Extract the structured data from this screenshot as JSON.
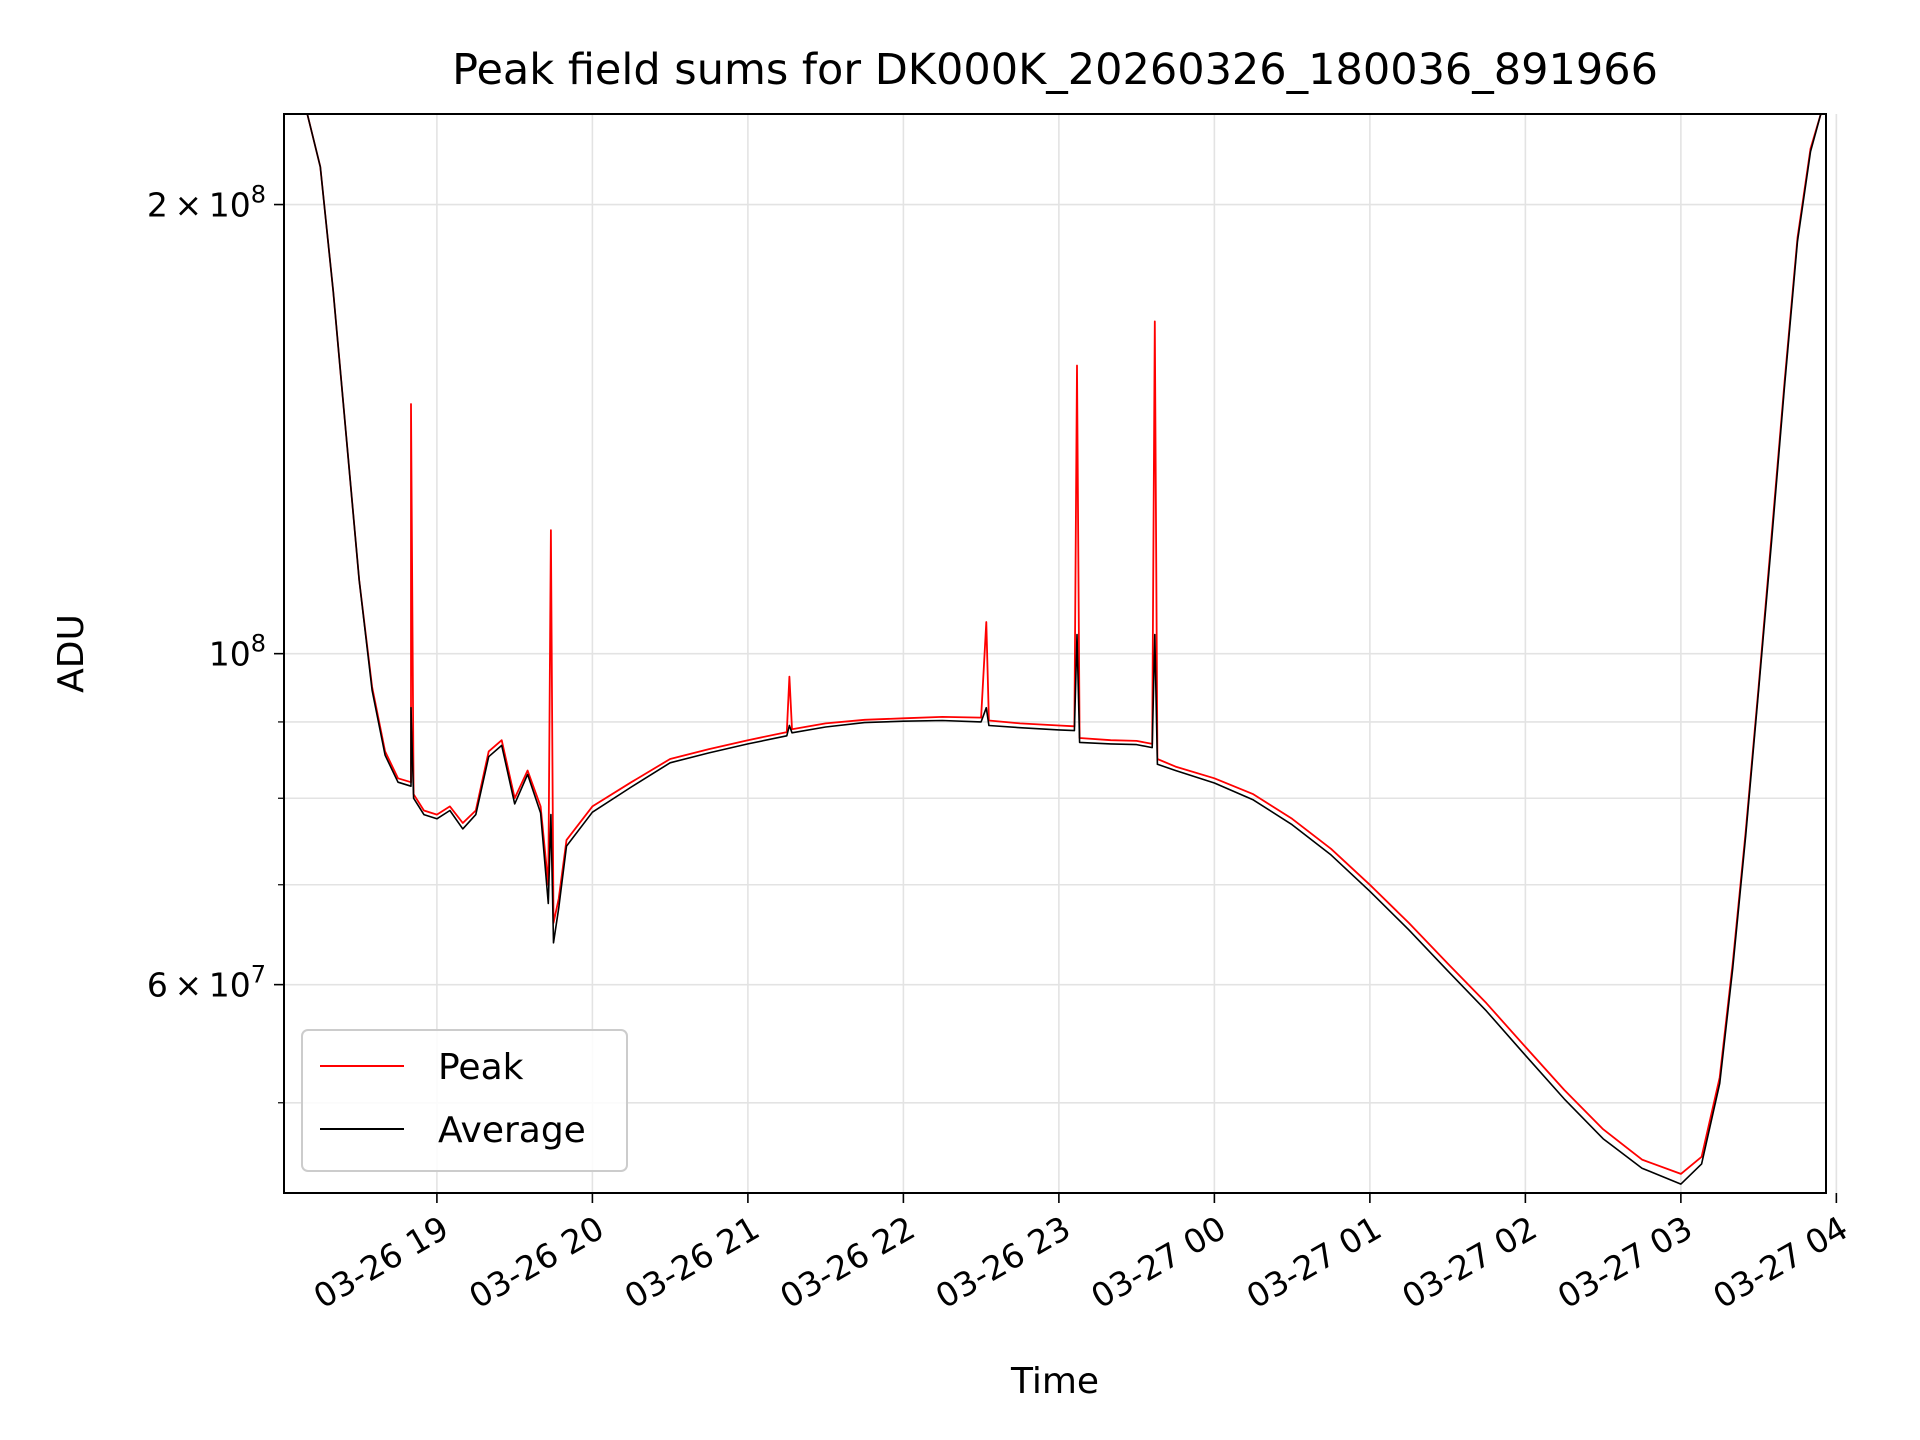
{
  "chart_data": {
    "type": "line",
    "title": "Peak field sums for DK000K_20260326_180036_891966",
    "xlabel": "Time",
    "ylabel": "ADU",
    "yscale": "log",
    "ylim": [
      43500000,
      230000000
    ],
    "xlim": [
      "03-26 18:01",
      "03-27 03:56"
    ],
    "grid": true,
    "legend_position": "lower-left",
    "x_tick_labels": [
      "03-26 19",
      "03-26 20",
      "03-26 21",
      "03-26 22",
      "03-26 23",
      "03-27 00",
      "03-27 01",
      "03-27 02",
      "03-27 03",
      "03-27 04"
    ],
    "y_tick_labels": [
      {
        "value": 200000000,
        "mantissa": "2",
        "times": "×",
        "base": "10",
        "exp": "8"
      },
      {
        "value": 100000000,
        "mantissa": "",
        "times": "",
        "base": "10",
        "exp": "8"
      },
      {
        "value": 60000000,
        "mantissa": "6",
        "times": "×",
        "base": "10",
        "exp": "7"
      }
    ],
    "y_minor_ticks": [
      50000000,
      70000000,
      80000000,
      90000000
    ],
    "series": [
      {
        "name": "Peak",
        "color": "#ff0000",
        "points": [
          [
            "03-26 18:10",
            230000000
          ],
          [
            "03-26 18:15",
            212000000
          ],
          [
            "03-26 18:20",
            175000000
          ],
          [
            "03-26 18:25",
            140000000
          ],
          [
            "03-26 18:30",
            112000000
          ],
          [
            "03-26 18:35",
            95000000
          ],
          [
            "03-26 18:40",
            86000000
          ],
          [
            "03-26 18:45",
            82500000
          ],
          [
            "03-26 18:50",
            82000000
          ],
          [
            "03-26 18:50",
            147000000
          ],
          [
            "03-26 18:51",
            80500000
          ],
          [
            "03-26 18:55",
            78500000
          ],
          [
            "03-26 19:00",
            78000000
          ],
          [
            "03-26 19:05",
            79000000
          ],
          [
            "03-26 19:10",
            77000000
          ],
          [
            "03-26 19:15",
            78500000
          ],
          [
            "03-26 19:20",
            86000000
          ],
          [
            "03-26 19:25",
            87500000
          ],
          [
            "03-26 19:30",
            80000000
          ],
          [
            "03-26 19:35",
            83500000
          ],
          [
            "03-26 19:40",
            79000000
          ],
          [
            "03-26 19:43",
            70000000
          ],
          [
            "03-26 19:44",
            121000000
          ],
          [
            "03-26 19:45",
            66000000
          ],
          [
            "03-26 19:47",
            68500000
          ],
          [
            "03-26 19:50",
            75000000
          ],
          [
            "03-26 20:00",
            79000000
          ],
          [
            "03-26 20:15",
            82000000
          ],
          [
            "03-26 20:30",
            85000000
          ],
          [
            "03-26 20:45",
            86300000
          ],
          [
            "03-26 21:00",
            87500000
          ],
          [
            "03-26 21:15",
            88600000
          ],
          [
            "03-26 21:16",
            96500000
          ],
          [
            "03-26 21:17",
            89000000
          ],
          [
            "03-26 21:30",
            89800000
          ],
          [
            "03-26 21:45",
            90300000
          ],
          [
            "03-26 22:00",
            90500000
          ],
          [
            "03-26 22:15",
            90700000
          ],
          [
            "03-26 22:30",
            90600000
          ],
          [
            "03-26 22:32",
            105000000
          ],
          [
            "03-26 22:33",
            90200000
          ],
          [
            "03-26 22:45",
            89800000
          ],
          [
            "03-26 23:00",
            89500000
          ],
          [
            "03-26 23:06",
            89400000
          ],
          [
            "03-26 23:07",
            156000000
          ],
          [
            "03-26 23:08",
            87800000
          ],
          [
            "03-26 23:20",
            87500000
          ],
          [
            "03-26 23:30",
            87400000
          ],
          [
            "03-26 23:36",
            87000000
          ],
          [
            "03-26 23:37",
            167000000
          ],
          [
            "03-26 23:38",
            85000000
          ],
          [
            "03-26 23:45",
            84000000
          ],
          [
            "03-27 00:00",
            82500000
          ],
          [
            "03-27 00:15",
            80500000
          ],
          [
            "03-27 00:30",
            77500000
          ],
          [
            "03-27 00:45",
            74000000
          ],
          [
            "03-27 01:00",
            70000000
          ],
          [
            "03-27 01:15",
            66000000
          ],
          [
            "03-27 01:30",
            62000000
          ],
          [
            "03-27 01:45",
            58300000
          ],
          [
            "03-27 02:00",
            54500000
          ],
          [
            "03-27 02:15",
            51000000
          ],
          [
            "03-27 02:30",
            48000000
          ],
          [
            "03-27 02:45",
            45800000
          ],
          [
            "03-27 03:00",
            44800000
          ],
          [
            "03-27 03:08",
            46000000
          ],
          [
            "03-27 03:15",
            52000000
          ],
          [
            "03-27 03:20",
            62000000
          ],
          [
            "03-27 03:25",
            76000000
          ],
          [
            "03-27 03:30",
            95000000
          ],
          [
            "03-27 03:35",
            120000000
          ],
          [
            "03-27 03:40",
            152000000
          ],
          [
            "03-27 03:45",
            190000000
          ],
          [
            "03-27 03:50",
            218000000
          ],
          [
            "03-27 03:54",
            230000000
          ]
        ]
      },
      {
        "name": "Average",
        "color": "#000000",
        "points": [
          [
            "03-26 18:10",
            230000000
          ],
          [
            "03-26 18:15",
            212000000
          ],
          [
            "03-26 18:20",
            175000000
          ],
          [
            "03-26 18:25",
            140000000
          ],
          [
            "03-26 18:30",
            112000000
          ],
          [
            "03-26 18:35",
            94500000
          ],
          [
            "03-26 18:40",
            85500000
          ],
          [
            "03-26 18:45",
            82000000
          ],
          [
            "03-26 18:50",
            81500000
          ],
          [
            "03-26 18:50",
            92000000
          ],
          [
            "03-26 18:51",
            80000000
          ],
          [
            "03-26 18:55",
            78000000
          ],
          [
            "03-26 19:00",
            77500000
          ],
          [
            "03-26 19:05",
            78500000
          ],
          [
            "03-26 19:10",
            76300000
          ],
          [
            "03-26 19:15",
            78000000
          ],
          [
            "03-26 19:20",
            85300000
          ],
          [
            "03-26 19:25",
            86800000
          ],
          [
            "03-26 19:30",
            79300000
          ],
          [
            "03-26 19:35",
            83000000
          ],
          [
            "03-26 19:40",
            78200000
          ],
          [
            "03-26 19:43",
            68000000
          ],
          [
            "03-26 19:44",
            78000000
          ],
          [
            "03-26 19:45",
            64000000
          ],
          [
            "03-26 19:47",
            67500000
          ],
          [
            "03-26 19:50",
            74300000
          ],
          [
            "03-26 20:00",
            78300000
          ],
          [
            "03-26 20:15",
            81400000
          ],
          [
            "03-26 20:30",
            84500000
          ],
          [
            "03-26 20:45",
            85800000
          ],
          [
            "03-26 21:00",
            87000000
          ],
          [
            "03-26 21:15",
            88100000
          ],
          [
            "03-26 21:16",
            89500000
          ],
          [
            "03-26 21:17",
            88500000
          ],
          [
            "03-26 21:30",
            89300000
          ],
          [
            "03-26 21:45",
            89900000
          ],
          [
            "03-26 22:00",
            90100000
          ],
          [
            "03-26 22:15",
            90200000
          ],
          [
            "03-26 22:30",
            90000000
          ],
          [
            "03-26 22:32",
            92000000
          ],
          [
            "03-26 22:33",
            89500000
          ],
          [
            "03-26 22:45",
            89200000
          ],
          [
            "03-26 23:00",
            88900000
          ],
          [
            "03-26 23:06",
            88800000
          ],
          [
            "03-26 23:07",
            103000000
          ],
          [
            "03-26 23:08",
            87200000
          ],
          [
            "03-26 23:20",
            87000000
          ],
          [
            "03-26 23:30",
            86900000
          ],
          [
            "03-26 23:36",
            86500000
          ],
          [
            "03-26 23:37",
            103000000
          ],
          [
            "03-26 23:38",
            84300000
          ],
          [
            "03-26 23:45",
            83500000
          ],
          [
            "03-27 00:00",
            81900000
          ],
          [
            "03-27 00:15",
            79800000
          ],
          [
            "03-27 00:30",
            76800000
          ],
          [
            "03-27 00:45",
            73300000
          ],
          [
            "03-27 01:00",
            69300000
          ],
          [
            "03-27 01:15",
            65300000
          ],
          [
            "03-27 01:30",
            61300000
          ],
          [
            "03-27 01:45",
            57600000
          ],
          [
            "03-27 02:00",
            53800000
          ],
          [
            "03-27 02:15",
            50300000
          ],
          [
            "03-27 02:30",
            47300000
          ],
          [
            "03-27 02:45",
            45200000
          ],
          [
            "03-27 03:00",
            44100000
          ],
          [
            "03-27 03:08",
            45500000
          ],
          [
            "03-27 03:15",
            51500000
          ],
          [
            "03-27 03:20",
            61500000
          ],
          [
            "03-27 03:25",
            75500000
          ],
          [
            "03-27 03:30",
            94500000
          ],
          [
            "03-27 03:35",
            119000000
          ],
          [
            "03-27 03:40",
            151000000
          ],
          [
            "03-27 03:45",
            189000000
          ],
          [
            "03-27 03:50",
            217000000
          ],
          [
            "03-27 03:54",
            230000000
          ]
        ]
      }
    ]
  }
}
